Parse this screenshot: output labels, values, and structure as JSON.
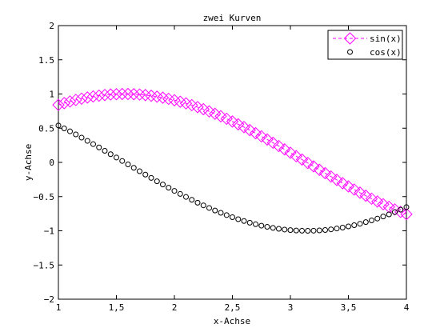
{
  "chart_data": {
    "type": "line",
    "title": "zwei Kurven",
    "xlabel": "x-Achse",
    "ylabel": "y-Achse",
    "xlim": [
      1,
      4
    ],
    "ylim": [
      -2,
      2
    ],
    "grid": false,
    "legend_position": "top-right",
    "x_ticks": [
      1,
      1.5,
      2,
      2.5,
      3,
      3.5,
      4
    ],
    "x_tick_labels": [
      "1",
      "1,5",
      "2",
      "2,5",
      "3",
      "3,5",
      "4"
    ],
    "y_ticks": [
      -2,
      -1.5,
      -1,
      -0.5,
      0,
      0.5,
      1,
      1.5,
      2
    ],
    "y_tick_labels": [
      "−2",
      "−1.5",
      "−1",
      "−0.5",
      "0",
      "0.5",
      "1",
      "1.5",
      "2"
    ],
    "x": [
      1.0,
      1.05,
      1.1,
      1.15,
      1.2,
      1.25,
      1.3,
      1.35,
      1.4,
      1.45,
      1.5,
      1.55,
      1.6,
      1.65,
      1.7,
      1.75,
      1.8,
      1.85,
      1.9,
      1.95,
      2.0,
      2.05,
      2.1,
      2.15,
      2.2,
      2.25,
      2.3,
      2.35,
      2.4,
      2.45,
      2.5,
      2.55,
      2.6,
      2.65,
      2.7,
      2.75,
      2.8,
      2.85,
      2.9,
      2.95,
      3.0,
      3.05,
      3.1,
      3.15,
      3.2,
      3.25,
      3.3,
      3.35,
      3.4,
      3.45,
      3.5,
      3.55,
      3.6,
      3.65,
      3.7,
      3.75,
      3.8,
      3.85,
      3.9,
      3.95,
      4.0
    ],
    "series": [
      {
        "name": "sin(x)",
        "color": "#ff00ff",
        "line": "dashed",
        "marker": "diamond",
        "values": [
          0.841,
          0.867,
          0.891,
          0.913,
          0.932,
          0.949,
          0.964,
          0.976,
          0.985,
          0.993,
          0.997,
          1.0,
          1.0,
          0.997,
          0.992,
          0.984,
          0.974,
          0.961,
          0.946,
          0.929,
          0.909,
          0.887,
          0.863,
          0.837,
          0.808,
          0.778,
          0.746,
          0.711,
          0.675,
          0.638,
          0.598,
          0.557,
          0.516,
          0.472,
          0.427,
          0.381,
          0.335,
          0.287,
          0.239,
          0.19,
          0.141,
          0.091,
          0.042,
          -0.008,
          -0.058,
          -0.108,
          -0.158,
          -0.207,
          -0.256,
          -0.304,
          -0.351,
          -0.397,
          -0.443,
          -0.487,
          -0.53,
          -0.572,
          -0.612,
          -0.65,
          -0.688,
          -0.723,
          -0.757
        ]
      },
      {
        "name": "cos(x)",
        "color": "#000000",
        "line": "none",
        "marker": "circle",
        "values": [
          0.54,
          0.497,
          0.454,
          0.409,
          0.362,
          0.315,
          0.267,
          0.219,
          0.17,
          0.12,
          0.071,
          0.021,
          -0.029,
          -0.079,
          -0.129,
          -0.178,
          -0.227,
          -0.276,
          -0.323,
          -0.37,
          -0.416,
          -0.461,
          -0.505,
          -0.547,
          -0.589,
          -0.628,
          -0.666,
          -0.703,
          -0.737,
          -0.77,
          -0.801,
          -0.83,
          -0.857,
          -0.882,
          -0.904,
          -0.925,
          -0.942,
          -0.958,
          -0.971,
          -0.982,
          -0.99,
          -0.996,
          -0.999,
          -1.0,
          -0.998,
          -0.994,
          -0.988,
          -0.979,
          -0.967,
          -0.953,
          -0.936,
          -0.918,
          -0.897,
          -0.873,
          -0.848,
          -0.821,
          -0.791,
          -0.76,
          -0.726,
          -0.691,
          -0.654
        ]
      }
    ]
  }
}
